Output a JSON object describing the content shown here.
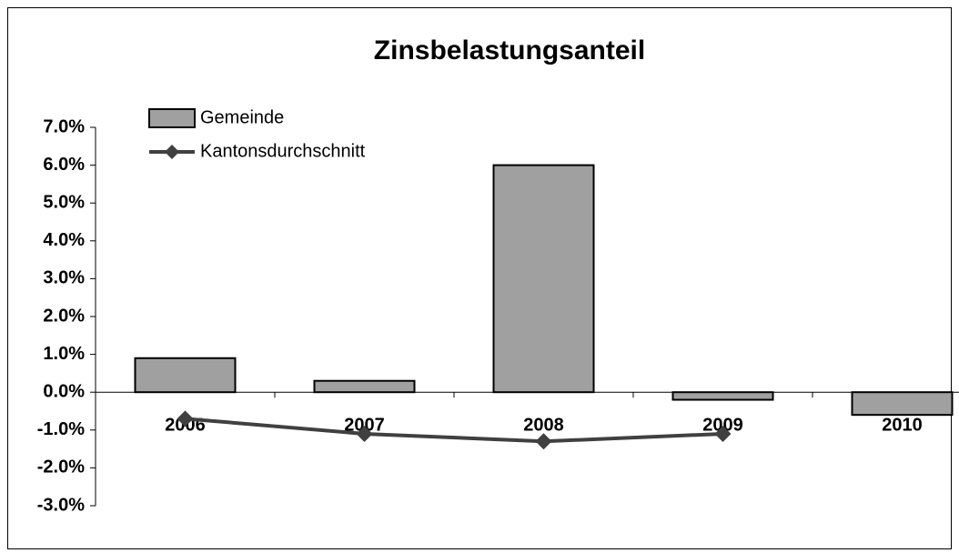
{
  "chart_data": {
    "type": "bar_line",
    "title": "Zinsbelastungsanteil",
    "categories": [
      "2006",
      "2007",
      "2008",
      "2009",
      "2010"
    ],
    "series": [
      {
        "name": "Gemeinde",
        "type": "bar",
        "color": "#a0a0a0",
        "values": [
          0.9,
          0.3,
          6.0,
          -0.2,
          -0.6
        ]
      },
      {
        "name": "Kantonsdurchschnitt",
        "type": "line",
        "color": "#404040",
        "values": [
          -0.7,
          -1.1,
          -1.3,
          -1.1,
          null
        ]
      }
    ],
    "ylim": [
      -3,
      7
    ],
    "yticks": [
      {
        "value": -3,
        "label": "-3.0%"
      },
      {
        "value": -2,
        "label": "-2.0%"
      },
      {
        "value": -1,
        "label": "-1.0%"
      },
      {
        "value": 0,
        "label": "0.0%"
      },
      {
        "value": 1,
        "label": "1.0%"
      },
      {
        "value": 2,
        "label": "2.0%"
      },
      {
        "value": 3,
        "label": "3.0%"
      },
      {
        "value": 4,
        "label": "4.0%"
      },
      {
        "value": 5,
        "label": "5.0%"
      },
      {
        "value": 6,
        "label": "6.0%"
      },
      {
        "value": 7,
        "label": "7.0%"
      }
    ],
    "legend": "top-left",
    "grid": false
  }
}
